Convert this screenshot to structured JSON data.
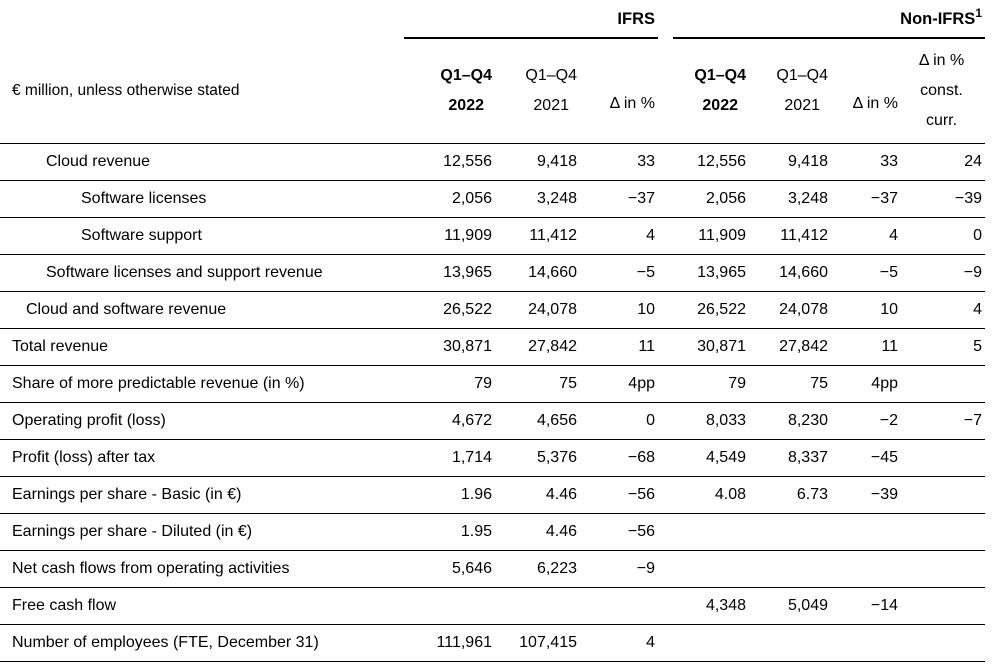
{
  "groups": {
    "ifrs": {
      "label": "IFRS"
    },
    "non_ifrs": {
      "label": "Non-IFRS",
      "footnote": "1"
    }
  },
  "header": {
    "unit_label": "€ million, unless otherwise stated",
    "ifrs": {
      "col_2022": {
        "line1": "Q1–Q4",
        "line2": "2022"
      },
      "col_2021": {
        "line1": "Q1–Q4",
        "line2": "2021"
      },
      "col_delta": {
        "line1": "Δ in %"
      }
    },
    "non_ifrs": {
      "col_2022": {
        "line1": "Q1–Q4",
        "line2": "2022"
      },
      "col_2021": {
        "line1": "Q1–Q4",
        "line2": "2021"
      },
      "col_delta": {
        "line1": "Δ in %"
      },
      "col_delta_cc": {
        "line1": "Δ in %",
        "line2": "const.",
        "line3": "curr."
      }
    }
  },
  "rows": [
    {
      "label": "Cloud revenue",
      "indent": 2,
      "ifrs": [
        "12,556",
        "9,418",
        "33"
      ],
      "non_ifrs": [
        "12,556",
        "9,418",
        "33",
        "24"
      ]
    },
    {
      "label": "Software licenses",
      "indent": 3,
      "ifrs": [
        "2,056",
        "3,248",
        "−37"
      ],
      "non_ifrs": [
        "2,056",
        "3,248",
        "−37",
        "−39"
      ]
    },
    {
      "label": "Software support",
      "indent": 3,
      "ifrs": [
        "11,909",
        "11,412",
        "4"
      ],
      "non_ifrs": [
        "11,909",
        "11,412",
        "4",
        "0"
      ]
    },
    {
      "label": "Software licenses and support revenue",
      "indent": 2,
      "ifrs": [
        "13,965",
        "14,660",
        "−5"
      ],
      "non_ifrs": [
        "13,965",
        "14,660",
        "−5",
        "−9"
      ]
    },
    {
      "label": "Cloud and software revenue",
      "indent": 1,
      "ifrs": [
        "26,522",
        "24,078",
        "10"
      ],
      "non_ifrs": [
        "26,522",
        "24,078",
        "10",
        "4"
      ]
    },
    {
      "label": "Total revenue",
      "indent": 0,
      "ifrs": [
        "30,871",
        "27,842",
        "11"
      ],
      "non_ifrs": [
        "30,871",
        "27,842",
        "11",
        "5"
      ]
    },
    {
      "label": "Share of more predictable revenue (in %)",
      "indent": 0,
      "ifrs": [
        "79",
        "75",
        "4pp"
      ],
      "non_ifrs": [
        "79",
        "75",
        "4pp",
        ""
      ]
    },
    {
      "label": "Operating profit (loss)",
      "indent": 0,
      "ifrs": [
        "4,672",
        "4,656",
        "0"
      ],
      "non_ifrs": [
        "8,033",
        "8,230",
        "−2",
        "−7"
      ]
    },
    {
      "label": "Profit (loss) after tax",
      "indent": 0,
      "ifrs": [
        "1,714",
        "5,376",
        "−68"
      ],
      "non_ifrs": [
        "4,549",
        "8,337",
        "−45",
        ""
      ]
    },
    {
      "label": "Earnings per share - Basic (in €)",
      "indent": 0,
      "ifrs": [
        "1.96",
        "4.46",
        "−56"
      ],
      "non_ifrs": [
        "4.08",
        "6.73",
        "−39",
        ""
      ]
    },
    {
      "label": "Earnings per share - Diluted (in €)",
      "indent": 0,
      "ifrs": [
        "1.95",
        "4.46",
        "−56"
      ],
      "non_ifrs": [
        "",
        "",
        "",
        ""
      ]
    },
    {
      "label": "Net cash flows from operating activities",
      "indent": 0,
      "ifrs": [
        "5,646",
        "6,223",
        "−9"
      ],
      "non_ifrs": [
        "",
        "",
        "",
        ""
      ]
    },
    {
      "label": "Free cash flow",
      "indent": 0,
      "ifrs": [
        "",
        "",
        ""
      ],
      "non_ifrs": [
        "4,348",
        "5,049",
        "−14",
        ""
      ]
    },
    {
      "label": "Number of employees (FTE, December 31)",
      "indent": 0,
      "ifrs": [
        "111,961",
        "107,415",
        "4"
      ],
      "non_ifrs": [
        "",
        "",
        "",
        ""
      ]
    }
  ]
}
